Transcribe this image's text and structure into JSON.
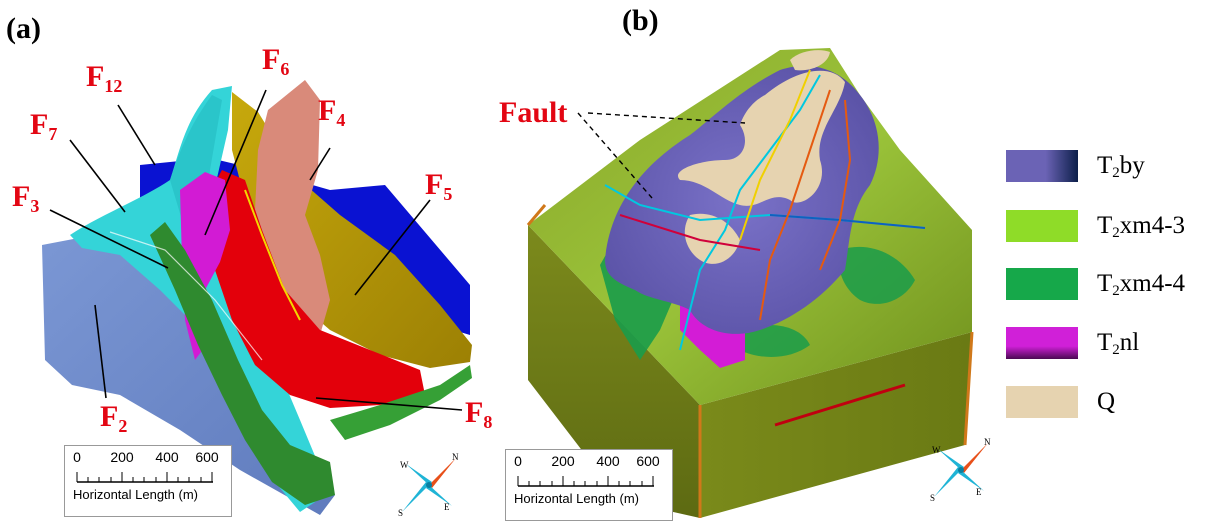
{
  "panels": {
    "a": "(a)",
    "b": "(b)"
  },
  "fault_labels": [
    {
      "id": "f12",
      "main": "F",
      "sub": "12"
    },
    {
      "id": "f7",
      "main": "F",
      "sub": "7"
    },
    {
      "id": "f3",
      "main": "F",
      "sub": "3"
    },
    {
      "id": "f2",
      "main": "F",
      "sub": "2"
    },
    {
      "id": "f6",
      "main": "F",
      "sub": "6"
    },
    {
      "id": "f4",
      "main": "F",
      "sub": "4"
    },
    {
      "id": "f5",
      "main": "F",
      "sub": "5"
    },
    {
      "id": "f8",
      "main": "F",
      "sub": "8"
    }
  ],
  "fault_callout": "Fault",
  "scale_bar": {
    "ticks": [
      "0",
      "200",
      "400",
      "600"
    ],
    "caption": "Horizontal Length (m)"
  },
  "compass": {
    "n": "N",
    "s": "S",
    "e": "E",
    "w": "W"
  },
  "legend": [
    {
      "pre": "T",
      "sub": "2",
      "post": "by",
      "color": "#6b63b5",
      "dark": "#0c1f4a"
    },
    {
      "pre": "T",
      "sub": "2",
      "post": "xm4-3",
      "color": "#8fdc28",
      "dark": "#8fdc28"
    },
    {
      "pre": "T",
      "sub": "2",
      "post": "xm4-4",
      "color": "#16a84a",
      "dark": "#16a84a"
    },
    {
      "pre": "T",
      "sub": "2",
      "post": "nl",
      "color": "#d020d8",
      "dark": "#4a0a52"
    },
    {
      "pre": "Q",
      "sub": "",
      "post": "",
      "color": "#e6d3b0",
      "dark": "#e6d3b0"
    }
  ],
  "colors": {
    "label_red": "#e30613",
    "fault_blue": "#0a12d2",
    "fault_cyan": "#33d6d6",
    "fault_slate": "#6f8bc9",
    "fault_red": "#e3000b",
    "fault_gold": "#b89a06",
    "fault_salmon": "#d98a7a",
    "fault_magenta": "#d21bd4",
    "fault_green": "#2f8a2f",
    "block_olive": "#7d8e1e"
  }
}
